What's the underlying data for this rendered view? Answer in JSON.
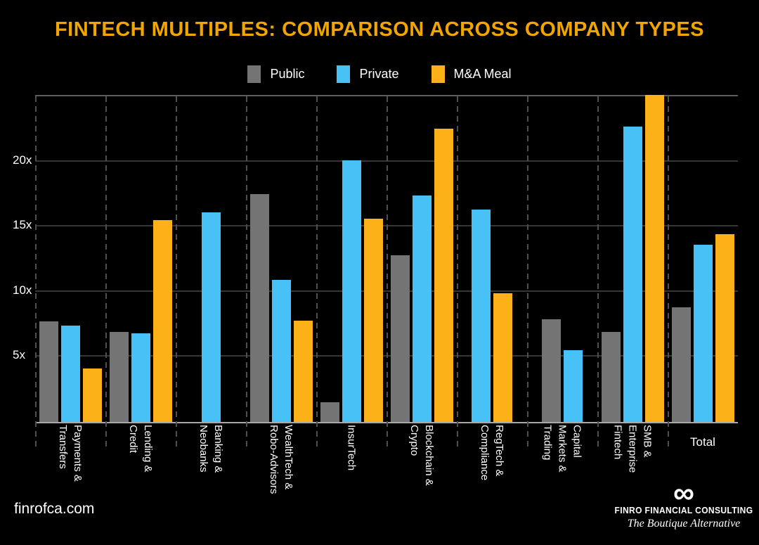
{
  "page": {
    "background": "#000000"
  },
  "title": {
    "text": "FINTECH MULTIPLES: COMPARISON ACROSS COMPANY TYPES",
    "color": "#F0A500"
  },
  "legend": {
    "items": [
      {
        "label": "Public",
        "color": "#747474"
      },
      {
        "label": "Private",
        "color": "#47C1F6"
      },
      {
        "label": "M&A Meal",
        "color": "#FBB117"
      }
    ]
  },
  "chart_data": {
    "type": "bar",
    "title": "FINTECH MULTIPLES: COMPARISON ACROSS COMPANY TYPES",
    "ylim": [
      0,
      25
    ],
    "ytick_values": [
      5,
      10,
      15,
      20
    ],
    "ytick_labels": [
      "5x",
      "10x",
      "15x",
      "20x"
    ],
    "grid": {
      "horizontal_lines": true,
      "vertical_dashed_separators": true
    },
    "legend_position": "top-center",
    "categories": [
      "Payments & Transfers",
      "Lending & Credit",
      "Banking & Neobanks",
      "WealthTech & Robo-Advisors",
      "InsurTech",
      "Blockchain & Crypto",
      "RegTech & Compliance",
      "Capital Markets & Trading",
      "SMB & Enterprise Fintech",
      "Total"
    ],
    "category_label_lines": [
      [
        "Payments &",
        "Transfers"
      ],
      [
        "Lending &",
        "Credit"
      ],
      [
        "Banking &",
        "Neobanks"
      ],
      [
        "WealthTech &",
        "Robo-Advisors"
      ],
      [
        "InsurTech"
      ],
      [
        "Blockchain &",
        "Crypto"
      ],
      [
        "RegTech &",
        "Compliance"
      ],
      [
        "Capital",
        "Markets &",
        "Trading"
      ],
      [
        "SMB &",
        "Enterprise",
        "Fintech"
      ],
      [
        "Total"
      ]
    ],
    "category_label_rotated": [
      true,
      true,
      true,
      true,
      true,
      true,
      true,
      true,
      true,
      false
    ],
    "series": [
      {
        "name": "Public",
        "color": "#747474",
        "values": [
          7.7,
          6.9,
          null,
          17.5,
          1.5,
          12.8,
          null,
          7.9,
          6.9,
          8.8
        ]
      },
      {
        "name": "Private",
        "color": "#47C1F6",
        "values": [
          7.4,
          6.8,
          16.1,
          10.9,
          20.1,
          17.4,
          16.3,
          5.5,
          22.7,
          13.6
        ]
      },
      {
        "name": "M&A Meal",
        "color": "#FBB117",
        "values": [
          4.1,
          15.5,
          null,
          7.8,
          15.6,
          22.5,
          9.9,
          null,
          25.1,
          14.4
        ]
      }
    ]
  },
  "footer": {
    "website": "finrofca.com",
    "brand": {
      "logo_glyph": "∞",
      "name": "FINRO FINANCIAL CONSULTING",
      "tagline": "The Boutique Alternative"
    }
  }
}
